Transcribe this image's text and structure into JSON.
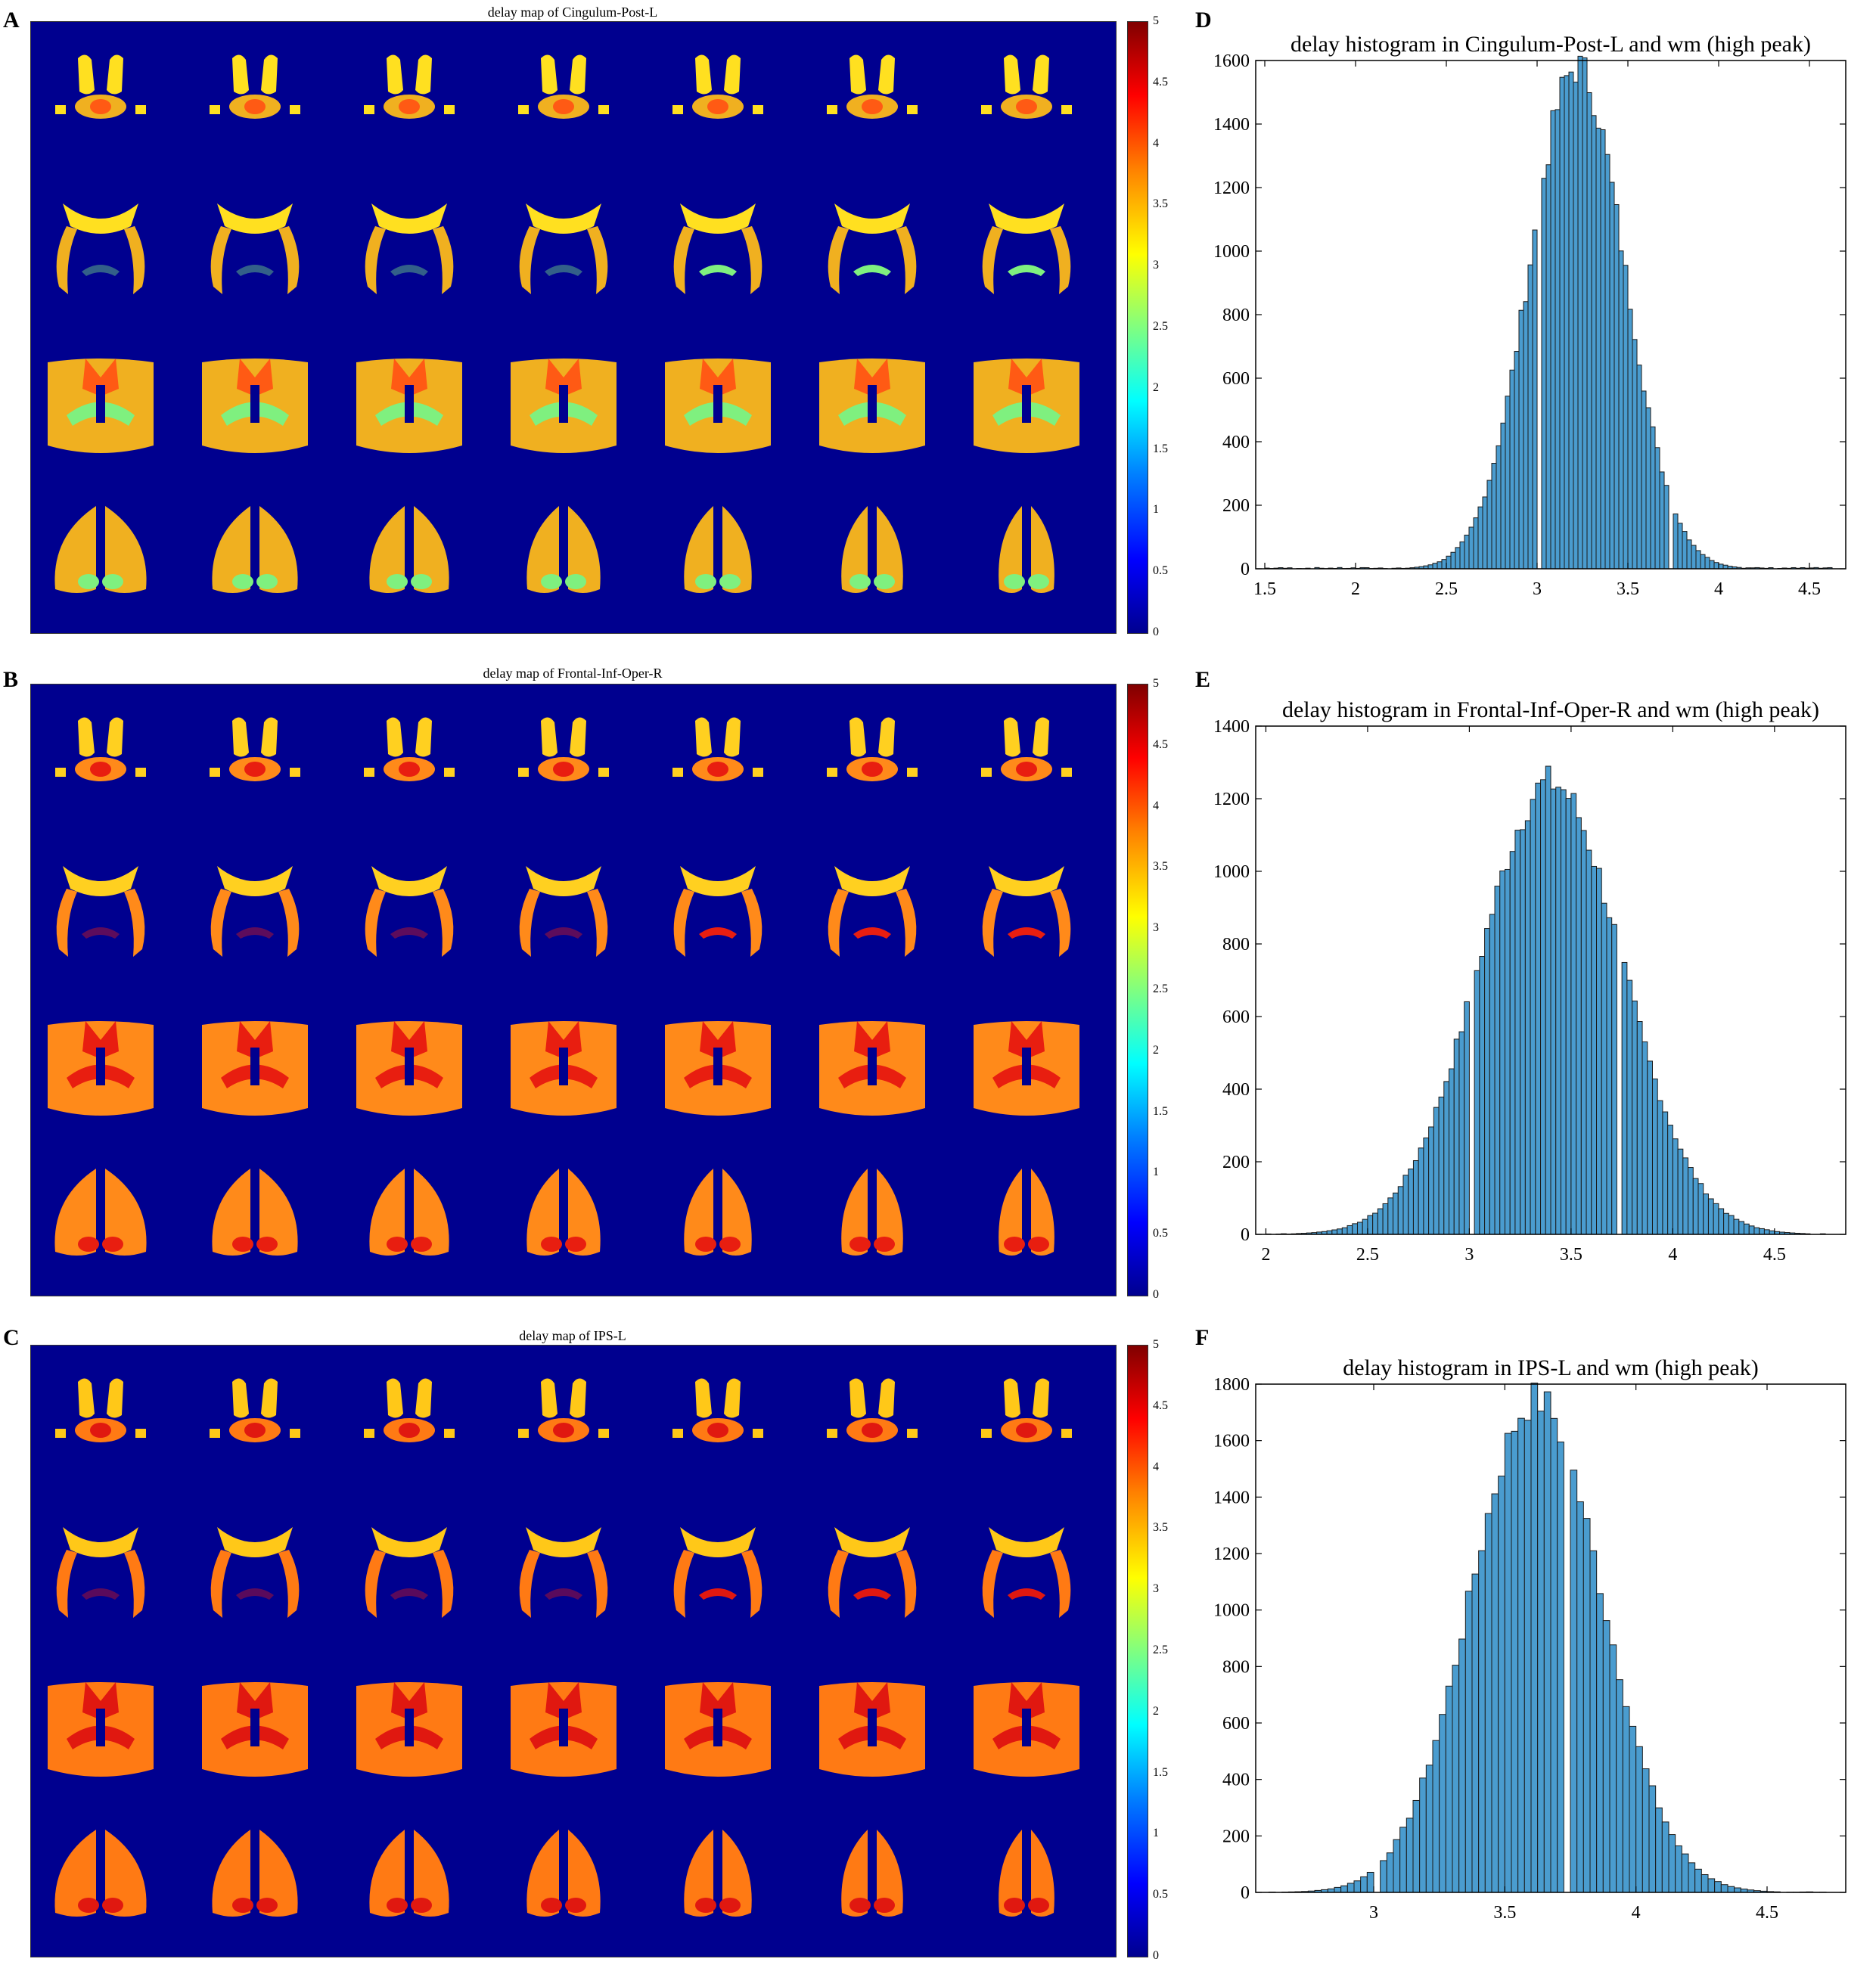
{
  "panels": {
    "A": {
      "letter": "A",
      "title": "delay map of Cingulum-Post-L",
      "scheme": "A"
    },
    "B": {
      "letter": "B",
      "title": "delay map of Frontal-Inf-Oper-R",
      "scheme": "B"
    },
    "C": {
      "letter": "C",
      "title": "delay map of IPS-L",
      "scheme": "C"
    },
    "D": {
      "letter": "D"
    },
    "E": {
      "letter": "E"
    },
    "F": {
      "letter": "F"
    }
  },
  "colorbar": {
    "ticks": [
      "0",
      "0.5",
      "1",
      "1.5",
      "2",
      "2.5",
      "3",
      "3.5",
      "4",
      "4.5",
      "5"
    ],
    "range": [
      0,
      5
    ]
  },
  "chart_data": [
    {
      "type": "bar",
      "title": "delay histogram in Cingulum-Post-L and wm (high peak)",
      "xlim": [
        1.45,
        4.7
      ],
      "ylim": [
        0,
        1600
      ],
      "xticks": [
        1.5,
        2,
        2.5,
        3,
        3.5,
        4,
        4.5
      ],
      "xtick_labels": [
        "1.5",
        "2",
        "2.5",
        "3",
        "3.5",
        "4",
        "4.5"
      ],
      "yticks": [
        0,
        200,
        400,
        600,
        800,
        1000,
        1200,
        1400,
        1600
      ],
      "bin_width": 0.025,
      "gap_bins": [
        3.0,
        3.725
      ],
      "mu": 3.22,
      "sigma": 0.26,
      "peak": 1580,
      "floor": 4
    },
    {
      "type": "bar",
      "title": "delay histogram in Frontal-Inf-Oper-R and wm (high peak)",
      "xlim": [
        1.95,
        4.85
      ],
      "ylim": [
        0,
        1400
      ],
      "xticks": [
        2,
        2.5,
        3,
        3.5,
        4,
        4.5
      ],
      "xtick_labels": [
        "2",
        "2.5",
        "3",
        "3.5",
        "4",
        "4.5"
      ],
      "yticks": [
        0,
        200,
        400,
        600,
        800,
        1000,
        1200,
        1400
      ],
      "bin_width": 0.025,
      "gap_bins": [
        3.0,
        3.725
      ],
      "mu": 3.4,
      "sigma": 0.35,
      "peak": 1245,
      "floor": 2
    },
    {
      "type": "bar",
      "title": "delay histogram in IPS-L and wm (high peak)",
      "xlim": [
        2.55,
        4.8
      ],
      "ylim": [
        0,
        1800
      ],
      "xticks": [
        3,
        3.5,
        4,
        4.5
      ],
      "xtick_labels": [
        "3",
        "3.5",
        "4",
        "4.5"
      ],
      "yticks": [
        0,
        200,
        400,
        600,
        800,
        1000,
        1200,
        1400,
        1600,
        1800
      ],
      "bin_width": 0.025,
      "gap_bins": [
        3.0,
        3.725
      ],
      "mu": 3.62,
      "sigma": 0.25,
      "peak": 1745,
      "floor": 2
    }
  ]
}
